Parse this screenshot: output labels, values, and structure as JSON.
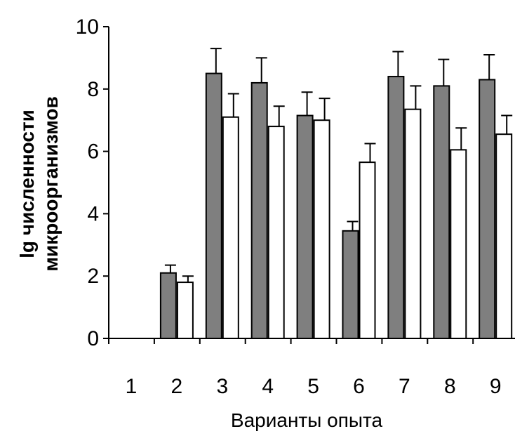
{
  "chart_data": {
    "type": "bar",
    "xlabel": "Варианты опыта",
    "ylabel_line1": "lg численности",
    "ylabel_line2": "микроорганизмов",
    "ylim": [
      0,
      10
    ],
    "yticks": [
      "0",
      "2",
      "4",
      "6",
      "8",
      "10"
    ],
    "categories": [
      "1",
      "2",
      "3",
      "4",
      "5",
      "6",
      "7",
      "8",
      "9"
    ],
    "series": [
      {
        "fill": "#7f7f7f",
        "values": [
          0,
          2.1,
          8.5,
          8.2,
          7.15,
          3.45,
          8.4,
          8.1,
          8.3
        ],
        "errors": [
          0,
          0.25,
          0.8,
          0.8,
          0.75,
          0.3,
          0.8,
          0.85,
          0.8
        ]
      },
      {
        "fill": "#ffffff",
        "values": [
          0,
          1.8,
          7.1,
          6.8,
          7.0,
          5.65,
          7.35,
          6.05,
          6.55
        ],
        "errors": [
          0,
          0.2,
          0.75,
          0.65,
          0.7,
          0.6,
          0.75,
          0.7,
          0.6
        ]
      }
    ],
    "colors": {
      "axis": "#000000",
      "bar_stroke": "#000000"
    }
  }
}
